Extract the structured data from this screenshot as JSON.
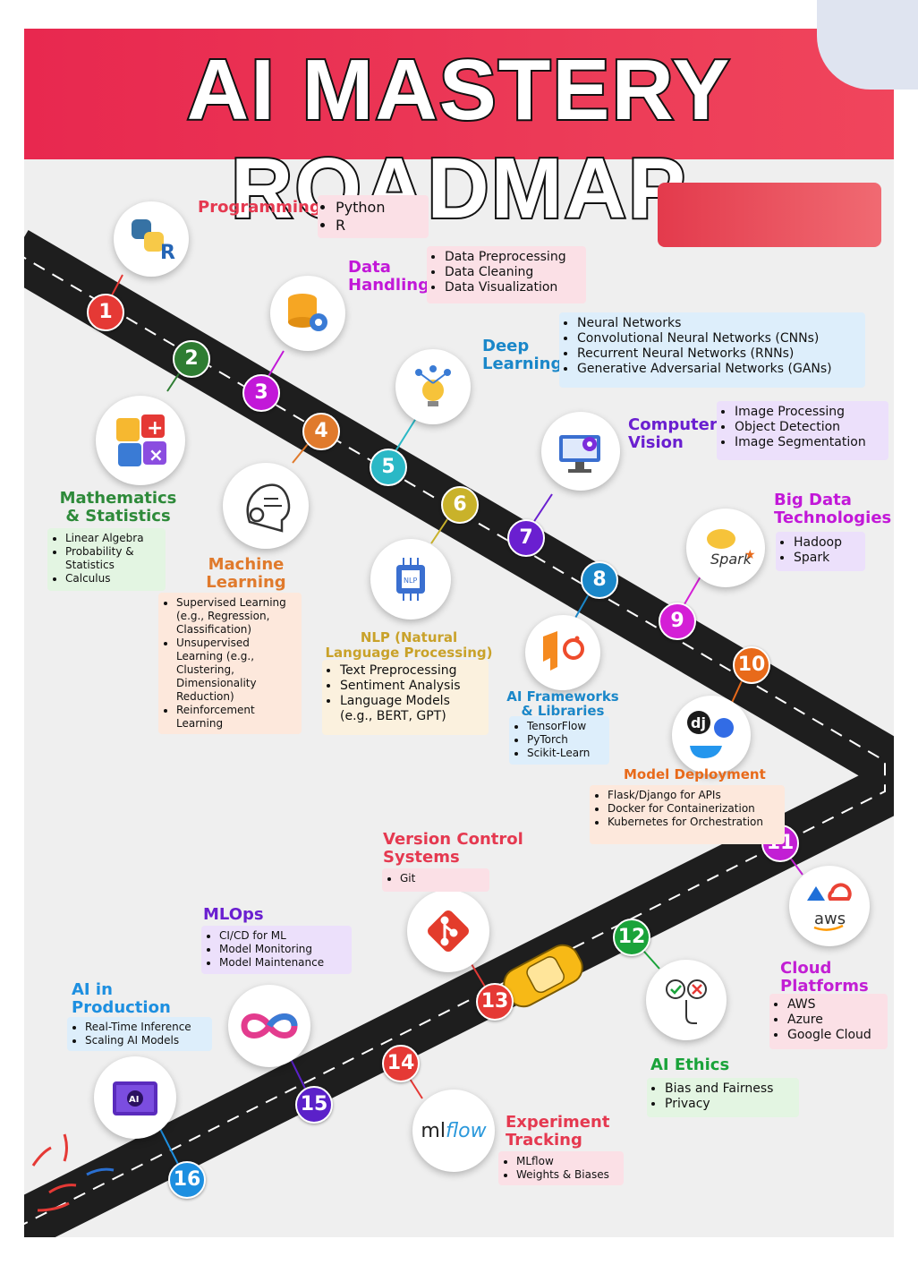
{
  "title": "AI MASTERY ROADMAP",
  "colors": {
    "banner": "#e8284f",
    "road": "#1e1e1e"
  },
  "steps": [
    {
      "num": "1",
      "color": "#e53935",
      "icon": "python-r-icon",
      "title": "Programming Languages",
      "items": [
        "Python",
        "R"
      ]
    },
    {
      "num": "2",
      "color": "#2e7d32",
      "icon": "math-symbols-icon",
      "title": "Mathematics & Statistics",
      "items": [
        "Linear Algebra",
        "Probability & Statistics",
        "Calculus"
      ]
    },
    {
      "num": "3",
      "color": "#c218d8",
      "icon": "database-gear-icon",
      "title": "Data Handling",
      "items": [
        "Data Preprocessing",
        "Data Cleaning",
        "Data Visualization"
      ]
    },
    {
      "num": "4",
      "color": "#e07a2c",
      "icon": "brain-circuit-icon",
      "title": "Machine Learning",
      "items": [
        "Supervised Learning (e.g., Regression, Classification)",
        "Unsupervised Learning (e.g., Clustering, Dimensionality Reduction)",
        "Reinforcement Learning"
      ]
    },
    {
      "num": "5",
      "color": "#2ab8c6",
      "icon": "network-bulb-icon",
      "title": "Deep Learning",
      "items": [
        "Neural Networks",
        "Convolutional Neural Networks (CNNs)",
        "Recurrent Neural Networks (RNNs)",
        "Generative Adversarial Networks (GANs)"
      ]
    },
    {
      "num": "6",
      "color": "#c9b22a",
      "icon": "nlp-chip-icon",
      "title": "NLP (Natural Language Processing)",
      "items": [
        "Text Preprocessing",
        "Sentiment Analysis",
        "Language Models (e.g., BERT, GPT)"
      ]
    },
    {
      "num": "7",
      "color": "#6a1fd0",
      "icon": "monitor-camera-icon",
      "title": "Computer Vision",
      "items": [
        "Image Processing",
        "Object Detection",
        "Image Segmentation"
      ]
    },
    {
      "num": "8",
      "color": "#1a87c9",
      "icon": "tensorflow-pytorch-icon",
      "title": "AI Frameworks & Libraries",
      "items": [
        "TensorFlow",
        "PyTorch",
        "Scikit-Learn"
      ]
    },
    {
      "num": "9",
      "color": "#d41fd6",
      "icon": "hadoop-spark-icon",
      "title": "Big Data Technologies",
      "items": [
        "Hadoop",
        "Spark"
      ]
    },
    {
      "num": "10",
      "color": "#e86a1a",
      "icon": "django-docker-k8s-icon",
      "title": "Model Deployment",
      "items": [
        "Flask/Django for APIs",
        "Docker for Containerization",
        "Kubernetes for Orchestration"
      ]
    },
    {
      "num": "11",
      "color": "#c21fd4",
      "icon": "cloud-providers-icon",
      "title": "Cloud Platforms",
      "items": [
        "AWS",
        "Azure",
        "Google Cloud"
      ]
    },
    {
      "num": "12",
      "color": "#1aa33a",
      "icon": "check-cross-hand-icon",
      "title": "AI Ethics",
      "items": [
        "Bias and Fairness",
        "Privacy"
      ]
    },
    {
      "num": "13",
      "color": "#e53935",
      "icon": "git-icon",
      "title": "Version Control Systems",
      "items": [
        "Git"
      ]
    },
    {
      "num": "14",
      "color": "#e53935",
      "icon": "mlflow-icon",
      "title": "Experiment Tracking",
      "items": [
        "MLflow",
        "Weights & Biases"
      ]
    },
    {
      "num": "15",
      "color": "#5b21c9",
      "icon": "infinity-icon",
      "title": "MLOps",
      "items": [
        "CI/CD for ML",
        "Model Monitoring",
        "Model Maintenance"
      ]
    },
    {
      "num": "16",
      "color": "#1d8fe0",
      "icon": "ai-book-icon",
      "title": "AI in Production",
      "items": [
        "Real-Time Inference",
        "Scaling AI Models"
      ]
    }
  ],
  "icon_texts": {
    "nlp": "NLP",
    "aws": "aws",
    "mlflow_a": "ml",
    "mlflow_b": "flow",
    "spark": "Spark",
    "dj": "dj",
    "r": "R",
    "ai": "AI"
  }
}
